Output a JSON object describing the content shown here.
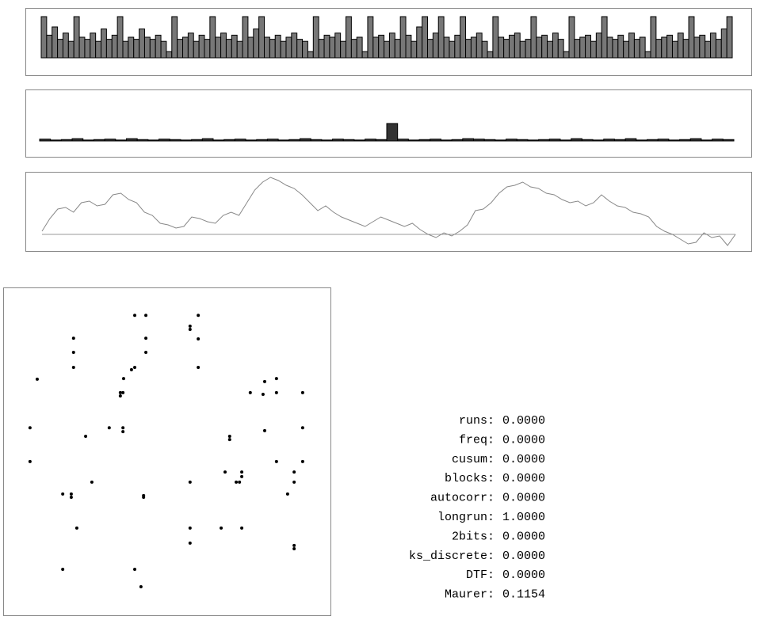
{
  "chart_data": [
    {
      "type": "bar",
      "color": "#777777",
      "ylim": [
        0,
        1
      ],
      "values": [
        1,
        0.55,
        0.75,
        0.45,
        0.6,
        0.4,
        1,
        0.5,
        0.45,
        0.6,
        0.4,
        0.7,
        0.45,
        0.55,
        1,
        0.4,
        0.5,
        0.45,
        0.7,
        0.5,
        0.45,
        0.55,
        0.4,
        0.15,
        1,
        0.45,
        0.5,
        0.6,
        0.4,
        0.55,
        0.45,
        1,
        0.5,
        0.6,
        0.45,
        0.55,
        0.4,
        1,
        0.5,
        0.7,
        1,
        0.5,
        0.45,
        0.55,
        0.4,
        0.5,
        0.6,
        0.45,
        0.4,
        0.15,
        1,
        0.45,
        0.55,
        0.5,
        0.6,
        0.4,
        1,
        0.45,
        0.5,
        0.15,
        1,
        0.5,
        0.55,
        0.4,
        0.6,
        0.45,
        1,
        0.55,
        0.4,
        0.75,
        1,
        0.45,
        0.6,
        1,
        0.5,
        0.4,
        0.55,
        1,
        0.45,
        0.5,
        0.6,
        0.4,
        0.15,
        1,
        0.5,
        0.45,
        0.55,
        0.6,
        0.4,
        0.45,
        1,
        0.5,
        0.55,
        0.4,
        0.6,
        0.45,
        0.15,
        1,
        0.45,
        0.5,
        0.55,
        0.4,
        0.6,
        1,
        0.5,
        0.45,
        0.55,
        0.4,
        0.6,
        0.45,
        0.5,
        0.15,
        1,
        0.45,
        0.5,
        0.55,
        0.4,
        0.6,
        0.45,
        1,
        0.5,
        0.55,
        0.4,
        0.6,
        0.45,
        0.7,
        1
      ]
    },
    {
      "type": "bar",
      "color": "#333333",
      "ylim": [
        0,
        1
      ],
      "values": [
        0.04,
        0.02,
        0.03,
        0.05,
        0.02,
        0.03,
        0.04,
        0.02,
        0.05,
        0.03,
        0.02,
        0.04,
        0.03,
        0.02,
        0.03,
        0.05,
        0.02,
        0.03,
        0.04,
        0.02,
        0.03,
        0.04,
        0.02,
        0.03,
        0.05,
        0.03,
        0.02,
        0.04,
        0.03,
        0.02,
        0.04,
        0.03,
        0.38,
        0.04,
        0.02,
        0.03,
        0.04,
        0.02,
        0.03,
        0.05,
        0.04,
        0.03,
        0.02,
        0.04,
        0.03,
        0.02,
        0.03,
        0.04,
        0.02,
        0.05,
        0.03,
        0.02,
        0.04,
        0.03,
        0.05,
        0.02,
        0.03,
        0.04,
        0.02,
        0.03,
        0.05,
        0.02,
        0.04,
        0.03
      ]
    },
    {
      "type": "line",
      "color": "#888888",
      "ylim": [
        -20,
        80
      ],
      "hline": 0,
      "values": [
        4,
        20,
        32,
        34,
        28,
        40,
        42,
        36,
        38,
        50,
        52,
        44,
        40,
        28,
        24,
        14,
        12,
        8,
        10,
        22,
        20,
        16,
        14,
        24,
        28,
        24,
        40,
        56,
        66,
        72,
        68,
        62,
        58,
        50,
        40,
        30,
        36,
        28,
        22,
        18,
        14,
        10,
        16,
        22,
        18,
        14,
        10,
        14,
        6,
        0,
        -4,
        2,
        -2,
        4,
        12,
        30,
        32,
        40,
        52,
        60,
        62,
        66,
        60,
        58,
        52,
        50,
        44,
        40,
        42,
        36,
        40,
        50,
        42,
        36,
        34,
        28,
        26,
        22,
        10,
        4,
        0,
        -6,
        -12,
        -10,
        2,
        -4,
        -2,
        -14,
        0
      ]
    },
    {
      "type": "scatter",
      "color": "#000000",
      "xlim": [
        0,
        100
      ],
      "ylim": [
        0,
        100
      ],
      "x": [
        40.2,
        43.6,
        59.6,
        57.1,
        57.1,
        59.6,
        21.5,
        43.6,
        21.5,
        43.6,
        21.5,
        59.6,
        40.2,
        39.2,
        36.8,
        10.4,
        79.9,
        83.5,
        35.8,
        36.6,
        75.5,
        79.4,
        83.5,
        91.5,
        35.8,
        8.2,
        32.4,
        36.6,
        36.6,
        25.2,
        79.9,
        91.5,
        69.2,
        69.2,
        8.2,
        83.5,
        91.5,
        67.8,
        72.9,
        72.9,
        88.9,
        71.2,
        72.2,
        27.1,
        57.1,
        88.9,
        18.2,
        20.8,
        20.8,
        42.9,
        42.9,
        86.9,
        22.5,
        57.1,
        66.6,
        72.9,
        57.1,
        88.9,
        88.9,
        18.2,
        40.2,
        42.1
      ],
      "y": [
        91.5,
        91.5,
        91.5,
        88.2,
        87.2,
        84.3,
        84.5,
        84.5,
        80.2,
        80.2,
        75.6,
        75.6,
        75.6,
        74.9,
        72.2,
        72.0,
        71.3,
        72.2,
        67.9,
        67.9,
        67.9,
        67.4,
        67.9,
        67.9,
        66.9,
        57.2,
        57.2,
        57.2,
        56.0,
        54.6,
        56.3,
        57.2,
        54.6,
        53.6,
        46.9,
        46.9,
        46.9,
        43.7,
        43.7,
        42.3,
        43.7,
        40.6,
        40.6,
        40.6,
        40.6,
        40.6,
        37.0,
        37.0,
        36.0,
        36.5,
        36.0,
        37.0,
        26.6,
        26.6,
        26.6,
        26.6,
        22.0,
        21.3,
        20.3,
        14.0,
        14.0,
        8.7
      ]
    }
  ],
  "stats": [
    {
      "label": "runs:",
      "value": "0.0000"
    },
    {
      "label": "freq:",
      "value": "0.0000"
    },
    {
      "label": "cusum:",
      "value": "0.0000"
    },
    {
      "label": "blocks:",
      "value": "0.0000"
    },
    {
      "label": "autocorr:",
      "value": "0.0000"
    },
    {
      "label": "longrun:",
      "value": "1.0000"
    },
    {
      "label": "2bits:",
      "value": "0.0000"
    },
    {
      "label": "ks_discrete:",
      "value": "0.0000"
    },
    {
      "label": "DTF:",
      "value": "0.0000"
    },
    {
      "label": "Maurer:",
      "value": "0.1154"
    }
  ]
}
